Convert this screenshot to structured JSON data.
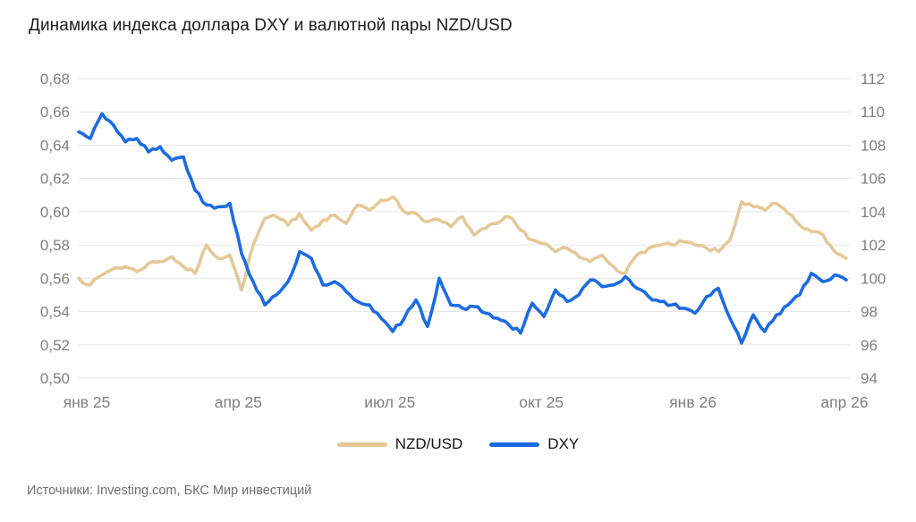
{
  "title": "Динамика индекса доллара DXY и валютной пары NZD/USD",
  "source": "Источники: Investing.com, БКС Мир инвестиций",
  "colors": {
    "nzdusd_line": "#e3c998",
    "dxy_line": "#1b6be1",
    "gridline": "#e6e6e6",
    "axis_text": "#7f7f7f",
    "title_text": "#1a1a1a",
    "source_text": "#6e6e6e",
    "background": "#ffffff"
  },
  "chart_data": {
    "type": "line",
    "title": "Динамика индекса доллара DXY и валютной пары NZD/USD",
    "xlabel": "",
    "ylabel_left": "NZD/USD",
    "ylabel_right": "DXY",
    "grid": true,
    "legend_position": "bottom-center",
    "x_tick_labels": [
      "янв 25",
      "апр 25",
      "июл 25",
      "окт 25",
      "янв 26",
      "апр 26"
    ],
    "left_axis": {
      "min": 0.5,
      "max": 0.68,
      "step": 0.02,
      "labels_top_to_bottom": [
        "0,68",
        "0,66",
        "0,64",
        "0,62",
        "0,60",
        "0,58",
        "0,56",
        "0,54",
        "0,52",
        "0,50"
      ]
    },
    "right_axis": {
      "min": 94,
      "max": 112,
      "step": 2,
      "labels_top_to_bottom": [
        "112",
        "110",
        "108",
        "106",
        "104",
        "102",
        "100",
        "98",
        "96",
        "94"
      ]
    },
    "legend": [
      "NZD/USD",
      "DXY"
    ],
    "sampling": "weekly estimates, Jan 2025 – Apr 2026",
    "series": [
      {
        "name": "NZD/USD",
        "axis": "left",
        "color": "#e3c998",
        "values": [
          0.56,
          0.556,
          0.562,
          0.566,
          0.567,
          0.564,
          0.569,
          0.57,
          0.573,
          0.567,
          0.563,
          0.58,
          0.572,
          0.574,
          0.553,
          0.58,
          0.596,
          0.597,
          0.592,
          0.599,
          0.589,
          0.595,
          0.598,
          0.593,
          0.604,
          0.601,
          0.607,
          0.609,
          0.6,
          0.599,
          0.594,
          0.595,
          0.591,
          0.597,
          0.586,
          0.59,
          0.593,
          0.597,
          0.589,
          0.583,
          0.581,
          0.576,
          0.578,
          0.573,
          0.57,
          0.574,
          0.567,
          0.563,
          0.574,
          0.578,
          0.58,
          0.58,
          0.582,
          0.58,
          0.578,
          0.576,
          0.583,
          0.606,
          0.603,
          0.601,
          0.605,
          0.599,
          0.592,
          0.588,
          0.586,
          0.576,
          0.572
        ]
      },
      {
        "name": "DXY",
        "axis": "right",
        "color": "#1b6be1",
        "values": [
          108.8,
          108.4,
          109.9,
          109.2,
          108.2,
          108.4,
          107.6,
          107.9,
          107.1,
          107.3,
          105.3,
          104.4,
          104.3,
          104.5,
          101.5,
          99.8,
          98.4,
          99.0,
          99.8,
          101.6,
          101.2,
          99.6,
          99.8,
          99.2,
          98.6,
          98.4,
          97.6,
          96.8,
          97.6,
          98.7,
          97.1,
          100.0,
          98.4,
          98.2,
          98.3,
          97.9,
          97.6,
          97.2,
          96.7,
          98.5,
          97.7,
          99.3,
          98.6,
          99.0,
          99.9,
          99.5,
          99.6,
          100.1,
          99.4,
          98.9,
          98.6,
          98.4,
          98.2,
          97.9,
          98.9,
          99.4,
          97.6,
          96.1,
          97.8,
          96.8,
          97.8,
          98.4,
          99.0,
          100.3,
          99.8,
          100.2,
          99.9
        ]
      }
    ]
  }
}
